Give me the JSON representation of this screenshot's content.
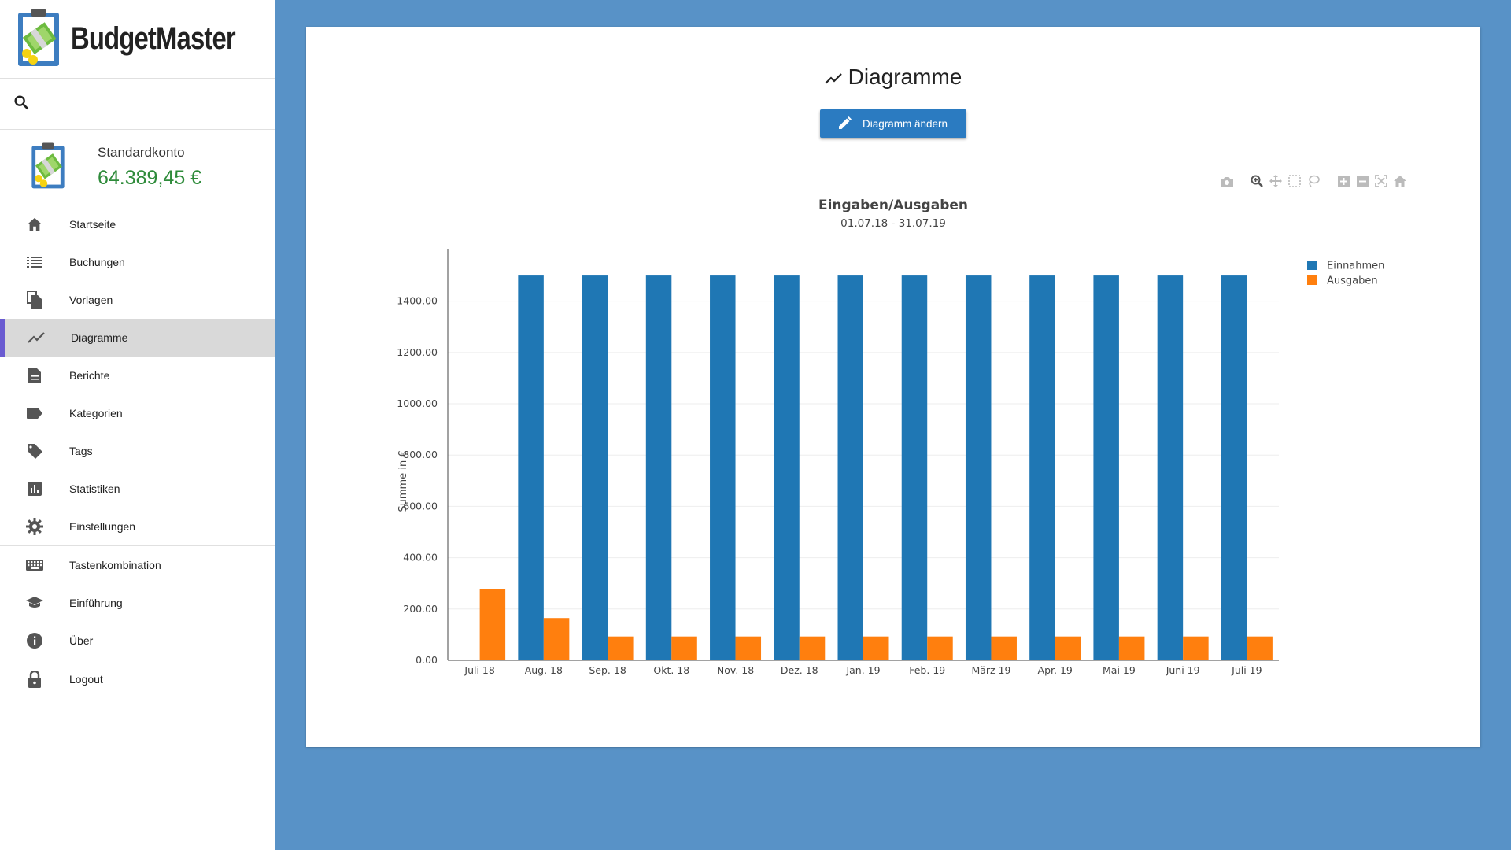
{
  "app": {
    "name": "BudgetMaster"
  },
  "account": {
    "name": "Standardkonto",
    "balance": "64.389,45 €"
  },
  "colors": {
    "primary": "#2b7bc1",
    "income": "#1f77b4",
    "expense": "#ff7f0e",
    "balance": "#2e8b3a",
    "active_marker": "#6a5bd1",
    "background": "#5892c7"
  },
  "nav": {
    "startseite": "Startseite",
    "buchungen": "Buchungen",
    "vorlagen": "Vorlagen",
    "diagramme": "Diagramme",
    "berichte": "Berichte",
    "kategorien": "Kategorien",
    "tags": "Tags",
    "statistiken": "Statistiken",
    "einstellungen": "Einstellungen",
    "tastenkombination": "Tastenkombination",
    "einfuehrung": "Einführung",
    "ueber": "Über",
    "logout": "Logout"
  },
  "page": {
    "title": "Diagramme",
    "edit_button_label": "Diagramm ändern"
  },
  "modebar": {
    "icons": [
      "camera-icon",
      "zoom-icon",
      "pan-icon",
      "box-select-icon",
      "lasso-select-icon",
      "zoom-in-icon",
      "zoom-out-icon",
      "autoscale-icon",
      "reset-axes-icon"
    ]
  },
  "chart_data": {
    "type": "bar",
    "title": "Eingaben/Ausgaben",
    "subtitle": "01.07.18 - 31.07.19",
    "xlabel": "",
    "ylabel": "Summe in €",
    "ylim": [
      0,
      1580
    ],
    "yticks": [
      0,
      200,
      400,
      600,
      800,
      1000,
      1200,
      1400
    ],
    "ytick_labels": [
      "0.00",
      "200.00",
      "400.00",
      "600.00",
      "800.00",
      "1000.00",
      "1200.00",
      "1400.00"
    ],
    "grid": true,
    "legend_position": "top-right",
    "categories": [
      "Juli 18",
      "Aug. 18",
      "Sep. 18",
      "Okt. 18",
      "Nov. 18",
      "Dez. 18",
      "Jan. 19",
      "Feb. 19",
      "März 19",
      "Apr. 19",
      "Mai 19",
      "Juni 19",
      "Juli 19"
    ],
    "series": [
      {
        "name": "Einnahmen",
        "color": "#1f77b4",
        "values": [
          0,
          1500,
          1500,
          1500,
          1500,
          1500,
          1500,
          1500,
          1500,
          1500,
          1500,
          1500,
          1500
        ]
      },
      {
        "name": "Ausgaben",
        "color": "#ff7f0e",
        "values": [
          277,
          165,
          93,
          93,
          93,
          93,
          93,
          93,
          93,
          93,
          93,
          93,
          93
        ]
      }
    ]
  }
}
